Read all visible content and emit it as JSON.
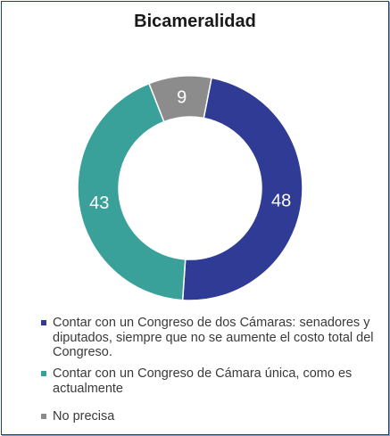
{
  "colors": {
    "series_0": "#2f3b94",
    "series_1": "#3aa19a",
    "series_2": "#8c8c8c",
    "border": "#1f3f7a"
  },
  "chart_data": {
    "type": "pie",
    "title": "Bicameralidad",
    "donut": true,
    "series": [
      {
        "label": "48",
        "value": 48,
        "legend": "Contar con un Congreso de dos Cámaras: senadores y diputados, siempre que no se aumente el costo total del Congreso.",
        "color": "#2f3b94"
      },
      {
        "label": "43",
        "value": 43,
        "legend": "Contar con un Congreso de Cámara única, como es actualmente",
        "color": "#3aa19a"
      },
      {
        "label": "9",
        "value": 9,
        "legend": "No precisa",
        "color": "#8c8c8c"
      }
    ],
    "legend_position": "bottom"
  }
}
